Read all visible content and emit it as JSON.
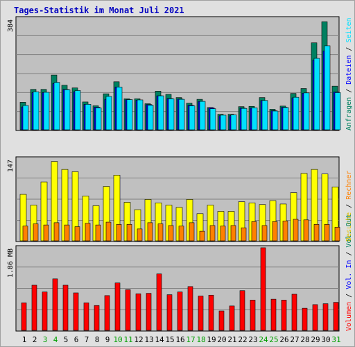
{
  "title": "Tages-Statistik im Monat Juli 2021",
  "colors": {
    "background": "#e0e0e0",
    "panel": "#c0c0c0",
    "hits": "#008060",
    "files": "#0000ff",
    "pages": "#00e0ff",
    "visits": "#ffff00",
    "sites": "#ff8000",
    "kbytes": "#ff0000",
    "weekend_label": "#00a000",
    "weekday_label": "#000000"
  },
  "right_labels": {
    "top": [
      {
        "text": "Anfragen",
        "color": "#008060"
      },
      {
        "text": " / ",
        "color": "#000000"
      },
      {
        "text": "Dateien",
        "color": "#0000ff"
      },
      {
        "text": " / ",
        "color": "#000000"
      },
      {
        "text": "Seiten",
        "color": "#00e0ff"
      }
    ],
    "mid": [
      {
        "text": "Besuche",
        "color": "#e0c000"
      },
      {
        "text": " / ",
        "color": "#000000"
      },
      {
        "text": "Rechner",
        "color": "#ff8000"
      }
    ],
    "bottom": [
      {
        "text": "Volumen",
        "color": "#ff0000"
      },
      {
        "text": " / ",
        "color": "#000000"
      },
      {
        "text": "Vol. In",
        "color": "#0000ff"
      },
      {
        "text": " / ",
        "color": "#000000"
      },
      {
        "text": "Vol. Out",
        "color": "#008060"
      }
    ]
  },
  "chart_data": [
    {
      "type": "bar",
      "name": "hits-files-pages",
      "ymax_label": "384",
      "ylim": [
        0,
        384
      ],
      "categories": [
        "1",
        "2",
        "3",
        "4",
        "5",
        "6",
        "7",
        "8",
        "9",
        "10",
        "11",
        "12",
        "13",
        "14",
        "15",
        "16",
        "17",
        "18",
        "19",
        "20",
        "21",
        "22",
        "23",
        "24",
        "25",
        "26",
        "27",
        "28",
        "29",
        "30",
        "31"
      ],
      "series": [
        {
          "name": "Anfragen",
          "values": [
            94,
            138,
            138,
            187,
            152,
            143,
            95,
            82,
            123,
            164,
            106,
            106,
            89,
            132,
            121,
            110,
            91,
            104,
            76,
            53,
            53,
            79,
            80,
            110,
            70,
            81,
            124,
            141,
            297,
            369,
            149
          ]
        },
        {
          "name": "Dateien",
          "values": [
            78,
            127,
            127,
            158,
            138,
            130,
            87,
            77,
            104,
            146,
            103,
            101,
            86,
            116,
            107,
            105,
            84,
            97,
            75,
            48,
            48,
            74,
            74,
            100,
            65,
            77,
            109,
            125,
            238,
            269,
            129
          ]
        },
        {
          "name": "Seiten",
          "values": [
            83,
            130,
            128,
            162,
            137,
            134,
            87,
            75,
            114,
            146,
            103,
            102,
            84,
            116,
            106,
            104,
            82,
            97,
            72,
            50,
            51,
            73,
            75,
            100,
            64,
            76,
            111,
            126,
            244,
            287,
            127
          ]
        }
      ]
    },
    {
      "type": "bar",
      "name": "visits-sites",
      "ymax_label": "147",
      "ylim": [
        0,
        147
      ],
      "series": [
        {
          "name": "Besuche",
          "values": [
            82,
            63,
            104,
            140,
            126,
            122,
            79,
            62,
            96,
            116,
            68,
            55,
            73,
            67,
            63,
            59,
            73,
            48,
            63,
            52,
            52,
            69,
            67,
            64,
            71,
            65,
            85,
            119,
            126,
            118,
            95
          ]
        },
        {
          "name": "Rechner",
          "values": [
            26,
            30,
            28,
            32,
            28,
            25,
            31,
            28,
            33,
            29,
            29,
            21,
            32,
            30,
            27,
            26,
            32,
            17,
            27,
            26,
            27,
            23,
            34,
            27,
            34,
            35,
            38,
            37,
            29,
            29,
            24
          ]
        }
      ]
    },
    {
      "type": "bar",
      "name": "volume",
      "ymax_label": "1.86 MB",
      "ylim": [
        0,
        1.86
      ],
      "series": [
        {
          "name": "Volumen",
          "values": [
            0.61,
            1.0,
            0.85,
            1.14,
            1.0,
            0.83,
            0.61,
            0.55,
            0.77,
            1.05,
            0.9,
            0.81,
            0.82,
            1.25,
            0.79,
            0.85,
            0.97,
            0.76,
            0.78,
            0.43,
            0.54,
            0.88,
            0.67,
            1.83,
            0.69,
            0.67,
            0.8,
            0.49,
            0.57,
            0.59,
            0.62
          ]
        }
      ]
    }
  ],
  "day_labels": [
    "1",
    "2",
    "3",
    "4",
    "5",
    "6",
    "7",
    "8",
    "9",
    "10",
    "11",
    "12",
    "13",
    "14",
    "15",
    "16",
    "17",
    "18",
    "19",
    "20",
    "21",
    "22",
    "23",
    "24",
    "25",
    "26",
    "27",
    "28",
    "29",
    "30",
    "31"
  ],
  "weekend_days": [
    "3",
    "4",
    "10",
    "11",
    "17",
    "18",
    "24",
    "25",
    "31"
  ]
}
